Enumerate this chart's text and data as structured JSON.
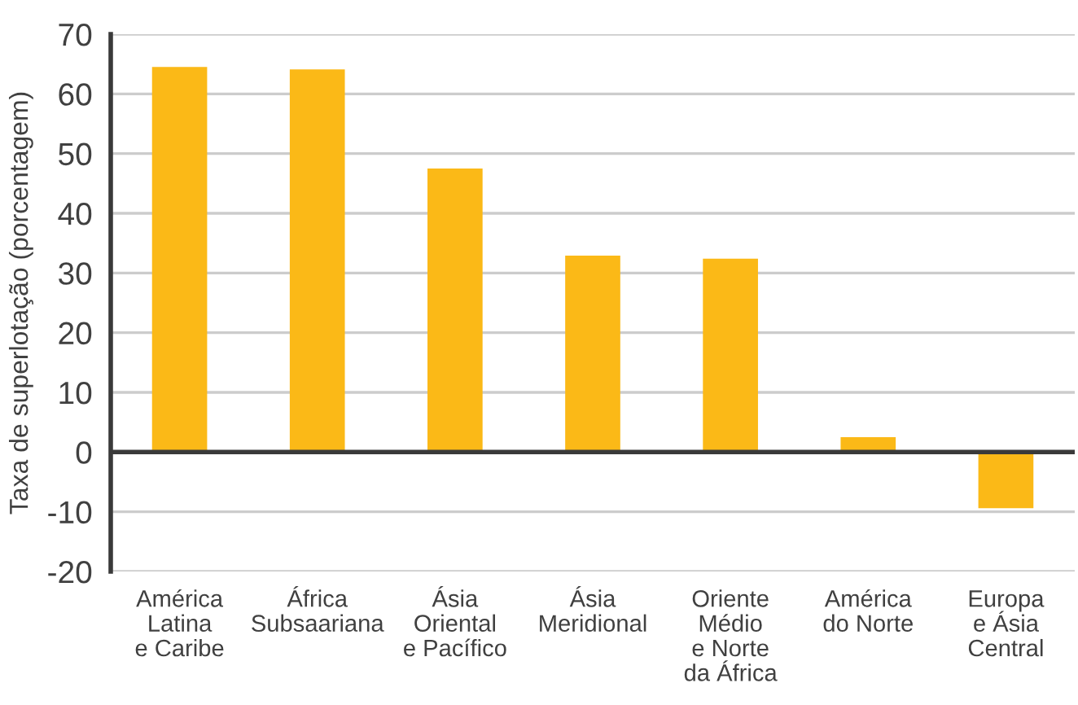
{
  "chart_data": {
    "type": "bar",
    "ylabel": "Taxa de superlotação (porcentagem)",
    "categories": [
      "América\nLatina\ne Caribe",
      "África\nSubsaariana",
      "Ásia\nOriental\ne Pacífico",
      "Ásia\nMeridional",
      "Oriente\nMédio\ne Norte\nda África",
      "América\ndo Norte",
      "Europa\ne Ásia\nCentral"
    ],
    "values": [
      64.5,
      64.1,
      47.5,
      32.9,
      32.4,
      2.5,
      -9.4
    ],
    "color": "#fbb917",
    "ylim": [
      -20,
      70
    ],
    "yticks": [
      -20,
      -10,
      0,
      10,
      20,
      30,
      40,
      50,
      60,
      70
    ],
    "grid": "y",
    "legend": false
  }
}
